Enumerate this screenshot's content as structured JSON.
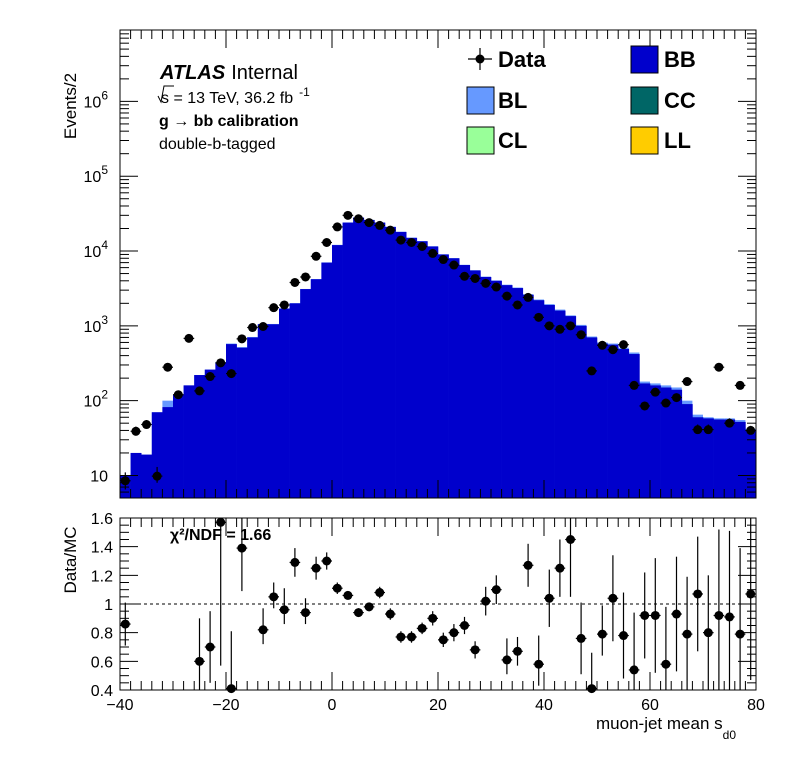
{
  "colors": {
    "BB": "#0000cc",
    "BL": "#6699ff",
    "CC": "#006666",
    "CL": "#99ff99",
    "LL": "#ffcc00",
    "data": "#000000"
  },
  "info": {
    "experiment": "ATLAS",
    "status": "Internal",
    "energy_prefix": "s",
    "energy_text": " = 13 TeV, 36.2 fb",
    "energy_sup": "-1",
    "calibration": "g  → bb calibration",
    "tagging": "double-b-tagged"
  },
  "legend": [
    {
      "key": "Data",
      "label": "Data",
      "style": "marker"
    },
    {
      "key": "BB",
      "label": "BB",
      "style": "fill"
    },
    {
      "key": "BL",
      "label": "BL",
      "style": "fill"
    },
    {
      "key": "CC",
      "label": "CC",
      "style": "fill"
    },
    {
      "key": "CL",
      "label": "CL",
      "style": "fill"
    },
    {
      "key": "LL",
      "label": "LL",
      "style": "fill"
    }
  ],
  "chart_data": [
    {
      "type": "histogram",
      "panel": "main",
      "ylabel": "Events/2",
      "yscale": "log",
      "ylim": [
        5,
        9000000
      ],
      "xlim": [
        -40,
        80
      ],
      "bin_width": 2,
      "yticks": [
        {
          "value": 10,
          "base": "10",
          "exp": ""
        },
        {
          "value": 100,
          "base": "10",
          "exp": "2"
        },
        {
          "value": 1000,
          "base": "10",
          "exp": "3"
        },
        {
          "value": 10000,
          "base": "10",
          "exp": "4"
        },
        {
          "value": 100000,
          "base": "10",
          "exp": "5"
        },
        {
          "value": 1000000,
          "base": "10",
          "exp": "6"
        }
      ],
      "bin_centers": [
        -39,
        -37,
        -35,
        -33,
        -31,
        -29,
        -27,
        -25,
        -23,
        -21,
        -19,
        -17,
        -15,
        -13,
        -11,
        -9,
        -7,
        -5,
        -3,
        -1,
        1,
        3,
        5,
        7,
        9,
        11,
        13,
        15,
        17,
        19,
        21,
        23,
        25,
        27,
        29,
        31,
        33,
        35,
        37,
        39,
        41,
        43,
        45,
        47,
        49,
        51,
        53,
        55,
        57,
        59,
        61,
        63,
        65,
        67,
        69,
        71,
        73,
        75,
        77,
        79
      ],
      "mc_total": [
        10,
        20,
        19,
        70,
        82,
        120,
        160,
        220,
        260,
        320,
        570,
        510,
        700,
        1050,
        1050,
        1700,
        2000,
        3100,
        4200,
        7000,
        12000,
        24000,
        28000,
        26000,
        24000,
        21000,
        18000,
        15000,
        13500,
        11500,
        9000,
        8000,
        6500,
        5500,
        4500,
        4000,
        3500,
        3200,
        2600,
        2200,
        1900,
        1600,
        1350,
        1000,
        700,
        580,
        560,
        490,
        420,
        170,
        160,
        150,
        140,
        90,
        60,
        58,
        56,
        56,
        52,
        40
      ],
      "bl_component": [
        10,
        20,
        19,
        70,
        100,
        120,
        160,
        220,
        260,
        330,
        580,
        520,
        710,
        1060,
        1060,
        1710,
        2010,
        3110,
        4220,
        7050,
        12100,
        24100,
        28100,
        26100,
        24100,
        21100,
        18100,
        15100,
        13600,
        11600,
        9050,
        8050,
        6550,
        5550,
        4550,
        4050,
        3550,
        3250,
        2650,
        2250,
        1950,
        1650,
        1380,
        1030,
        720,
        600,
        580,
        510,
        440,
        180,
        170,
        160,
        150,
        100,
        65,
        60,
        58,
        58,
        55,
        42
      ],
      "data": [
        8.5,
        39,
        48,
        9.8,
        280,
        120,
        680,
        135,
        210,
        320,
        230,
        670,
        950,
        980,
        1750,
        1900,
        3800,
        4500,
        8500,
        13000,
        21000,
        30000,
        27000,
        24000,
        22000,
        19000,
        14000,
        13000,
        11500,
        9300,
        7700,
        6500,
        4600,
        4300,
        3700,
        3300,
        2500,
        1900,
        2400,
        1300,
        1000,
        900,
        1000,
        760,
        250,
        550,
        480,
        560,
        160,
        85,
        130,
        93,
        110,
        180,
        41,
        41,
        280,
        50,
        160,
        40
      ],
      "data_err_low": [
        6.5,
        34,
        44,
        8,
        270,
        112,
        665,
        125,
        200,
        310,
        220,
        655,
        930,
        960,
        1720,
        1870,
        3740,
        4430,
        8400,
        12880,
        20850,
        29820,
        26830,
        23840,
        21850,
        18860,
        13880,
        12880,
        11390,
        9200,
        7610,
        6410,
        4530,
        4230,
        3640,
        3240,
        2450,
        1850,
        2350,
        1260,
        960,
        865,
        965,
        730,
        235,
        525,
        460,
        535,
        148,
        77,
        120,
        85,
        100,
        170,
        36,
        36,
        265,
        44,
        150,
        36
      ],
      "data_err_high": [
        11,
        45,
        55,
        13,
        295,
        130,
        700,
        148,
        225,
        335,
        244,
        690,
        975,
        1005,
        1790,
        1940,
        3860,
        4570,
        8600,
        13120,
        21150,
        30180,
        27170,
        24160,
        22150,
        19140,
        14120,
        13120,
        11610,
        9400,
        7790,
        6590,
        4670,
        4370,
        3760,
        3360,
        2550,
        1950,
        2450,
        1340,
        1040,
        935,
        1035,
        790,
        265,
        575,
        500,
        585,
        175,
        95,
        142,
        102,
        122,
        192,
        48,
        48,
        297,
        58,
        173,
        46
      ]
    },
    {
      "type": "scatter",
      "panel": "ratio",
      "ylabel": "Data/MC",
      "xlabel": "muon-jet mean s",
      "xlabel_sub": "d0",
      "annotation": "χ²/NDF = 1.66",
      "ylim": [
        0.4,
        1.6
      ],
      "xlim": [
        -40,
        80
      ],
      "reference_line": 1,
      "yticks": [
        0.4,
        0.6,
        0.8,
        1,
        1.2,
        1.4,
        1.6
      ],
      "ytick_labels": [
        "0.4",
        "0.6",
        "0.8",
        "1",
        "1.2",
        "1.4",
        "1.6"
      ],
      "xticks": [
        -40,
        -20,
        0,
        20,
        40,
        60,
        80
      ],
      "xtick_labels": [
        "−40",
        "−20",
        "0",
        "20",
        "40",
        "60",
        "80"
      ],
      "x": [
        -39,
        -25,
        -23,
        -21,
        -19,
        -17,
        -13,
        -11,
        -9,
        -7,
        -5,
        -3,
        -1,
        1,
        3,
        5,
        7,
        9,
        11,
        13,
        15,
        17,
        19,
        21,
        23,
        25,
        27,
        29,
        31,
        33,
        35,
        37,
        39,
        41,
        43,
        45,
        47,
        49,
        51,
        53,
        55,
        57,
        59,
        61,
        63,
        65,
        67,
        69,
        71,
        73,
        75,
        77,
        79
      ],
      "y": [
        0.86,
        0.6,
        0.7,
        1.57,
        0.41,
        1.39,
        0.82,
        1.05,
        0.96,
        1.29,
        0.94,
        1.25,
        1.3,
        1.11,
        1.06,
        0.94,
        0.98,
        1.08,
        0.93,
        0.77,
        0.77,
        0.83,
        0.9,
        0.75,
        0.8,
        0.85,
        0.68,
        1.02,
        1.1,
        0.61,
        0.67,
        1.27,
        0.58,
        1.04,
        1.25,
        1.45,
        0.76,
        0.41,
        0.79,
        1.04,
        0.78,
        0.54,
        0.92,
        0.92,
        0.58,
        0.93,
        0.79,
        1.07,
        0.8,
        0.92,
        0.91,
        0.79,
        1.07
      ],
      "err_low": [
        0.15,
        0.2,
        0.25,
        1.0,
        0.3,
        0.3,
        0.1,
        0.08,
        0.1,
        0.1,
        0.08,
        0.08,
        0.06,
        0.04,
        0.03,
        0.03,
        0.03,
        0.04,
        0.04,
        0.04,
        0.04,
        0.04,
        0.05,
        0.05,
        0.06,
        0.06,
        0.06,
        0.1,
        0.1,
        0.1,
        0.1,
        0.15,
        0.15,
        0.2,
        0.2,
        0.4,
        0.25,
        0.2,
        0.15,
        0.3,
        0.3,
        0.4,
        0.3,
        0.4,
        0.4,
        0.4,
        0.4,
        0.4,
        0.4,
        0.6,
        0.6,
        0.6,
        0.6
      ],
      "err_high": [
        0.15,
        0.3,
        0.25,
        0.5,
        0.4,
        0.3,
        0.15,
        0.1,
        0.15,
        0.1,
        0.1,
        0.08,
        0.06,
        0.04,
        0.03,
        0.03,
        0.03,
        0.04,
        0.04,
        0.04,
        0.04,
        0.04,
        0.05,
        0.05,
        0.06,
        0.06,
        0.06,
        0.1,
        0.1,
        0.15,
        0.1,
        0.15,
        0.2,
        0.2,
        0.2,
        0.3,
        0.25,
        0.25,
        0.2,
        0.3,
        0.3,
        0.4,
        0.3,
        0.4,
        0.4,
        0.4,
        0.4,
        0.4,
        0.4,
        0.6,
        0.6,
        0.6,
        0.6
      ]
    }
  ]
}
